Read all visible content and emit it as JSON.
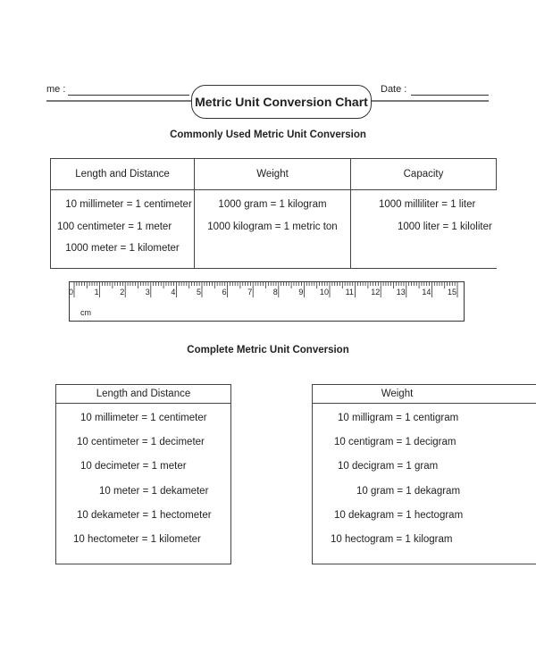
{
  "header": {
    "name_label": "me :",
    "date_label": "Date :",
    "title": "Metric Unit Conversion Chart"
  },
  "common": {
    "heading": "Commonly Used Metric Unit Conversion",
    "columns": [
      "Length and Distance",
      "Weight",
      "Capacity"
    ],
    "length": [
      "10 millimeter = 1 centimeter",
      "100 centimeter = 1 meter",
      "1000 meter = 1 kilometer"
    ],
    "weight": [
      "1000 gram = 1 kilogram",
      "1000 kilogram = 1 metric ton"
    ],
    "capacity": [
      "1000 milliliter = 1 liter",
      "1000 liter = 1 kiloliter"
    ]
  },
  "ruler": {
    "unit": "cm",
    "labels": [
      "0",
      "1",
      "2",
      "3",
      "4",
      "5",
      "6",
      "7",
      "8",
      "9",
      "10",
      "11",
      "12",
      "13",
      "14",
      "15"
    ]
  },
  "complete": {
    "heading": "Complete Metric Unit Conversion",
    "length": {
      "header": "Length and Distance",
      "rows": [
        "10 millimeter = 1 centimeter",
        "10 centimeter = 1 decimeter",
        "10 decimeter = 1 meter",
        "10 meter =  1 dekameter",
        "10 dekameter = 1 hectometer",
        "10 hectometer = 1 kilometer"
      ]
    },
    "weight": {
      "header": "Weight",
      "rows": [
        "10 milligram = 1 centigram",
        "10 centigram = 1 decigram",
        "10 decigram = 1 gram",
        "10 gram =  1 dekagram",
        "10 dekagram = 1 hectogram",
        "10 hectogram = 1 kilogram"
      ]
    }
  }
}
